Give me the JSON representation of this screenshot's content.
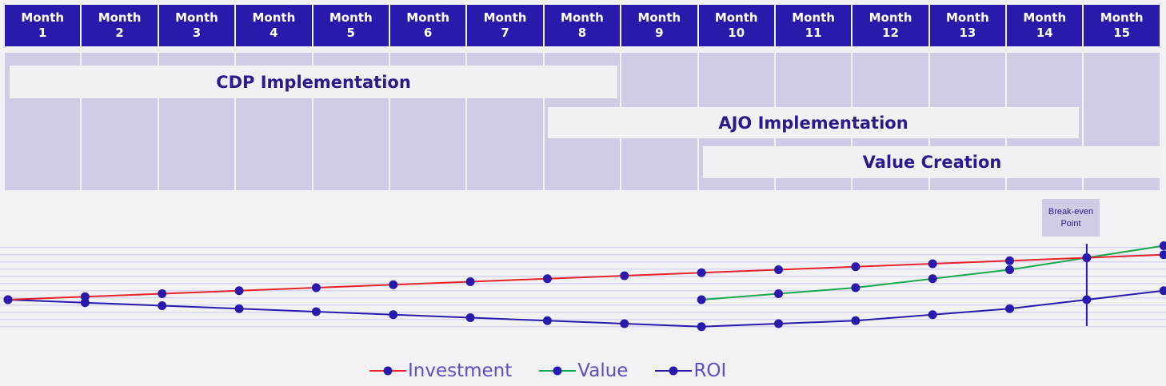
{
  "months": [
    [
      "Month",
      "1"
    ],
    [
      "Month",
      "2"
    ],
    [
      "Month",
      "3"
    ],
    [
      "Month",
      "4"
    ],
    [
      "Month",
      "5"
    ],
    [
      "Month",
      "6"
    ],
    [
      "Month",
      "7"
    ],
    [
      "Month",
      "8"
    ],
    [
      "Month",
      "9"
    ],
    [
      "Month",
      "10"
    ],
    [
      "Month",
      "11"
    ],
    [
      "Month",
      "12"
    ],
    [
      "Month",
      "13"
    ],
    [
      "Month",
      "14"
    ],
    [
      "Month",
      "15"
    ]
  ],
  "phases": {
    "cdp": "CDP Implementation",
    "ajo": "AJO Implementation",
    "value": "Value Creation"
  },
  "annotation": {
    "line1": "Break-even",
    "line2": "Point"
  },
  "colors": {
    "header": "#2a1aab",
    "investment": "#e8232a",
    "value": "#1aa84a",
    "roi": "#2a1aab",
    "marker": "#2a1aab",
    "gridline": "#d8d6f0"
  },
  "chart_data": {
    "type": "line",
    "title": "",
    "xlabel": "",
    "ylabel": "",
    "x": [
      0,
      1,
      2,
      3,
      4,
      5,
      6,
      7,
      8,
      9,
      10,
      11,
      12,
      13,
      14,
      15
    ],
    "ylim": [
      -9.5,
      18
    ],
    "grid": true,
    "legend_position": "bottom",
    "series": [
      {
        "name": "Investment",
        "color_key": "investment",
        "x": [
          0,
          1,
          2,
          3,
          4,
          5,
          6,
          7,
          8,
          9,
          10,
          11,
          12,
          13,
          14,
          15
        ],
        "values": [
          0,
          1,
          2,
          3,
          4,
          5,
          6,
          7,
          8,
          9,
          10,
          11,
          12,
          13,
          14,
          15
        ]
      },
      {
        "name": "Value",
        "color_key": "value",
        "x": [
          9,
          10,
          11,
          12,
          13,
          14,
          15
        ],
        "values": [
          0,
          2,
          4,
          7,
          10,
          14,
          18
        ]
      },
      {
        "name": "ROI",
        "color_key": "roi",
        "x": [
          0,
          1,
          2,
          3,
          4,
          5,
          6,
          7,
          8,
          9,
          10,
          11,
          12,
          13,
          14,
          15
        ],
        "values": [
          0,
          -1,
          -2,
          -3,
          -4,
          -5,
          -6,
          -7,
          -8,
          -9,
          -8,
          -7,
          -5,
          -3,
          0,
          3
        ]
      }
    ],
    "annotations": [
      {
        "text": "Break-even Point",
        "x": 14
      }
    ]
  },
  "legend": [
    "Investment",
    "Value",
    "ROI"
  ]
}
